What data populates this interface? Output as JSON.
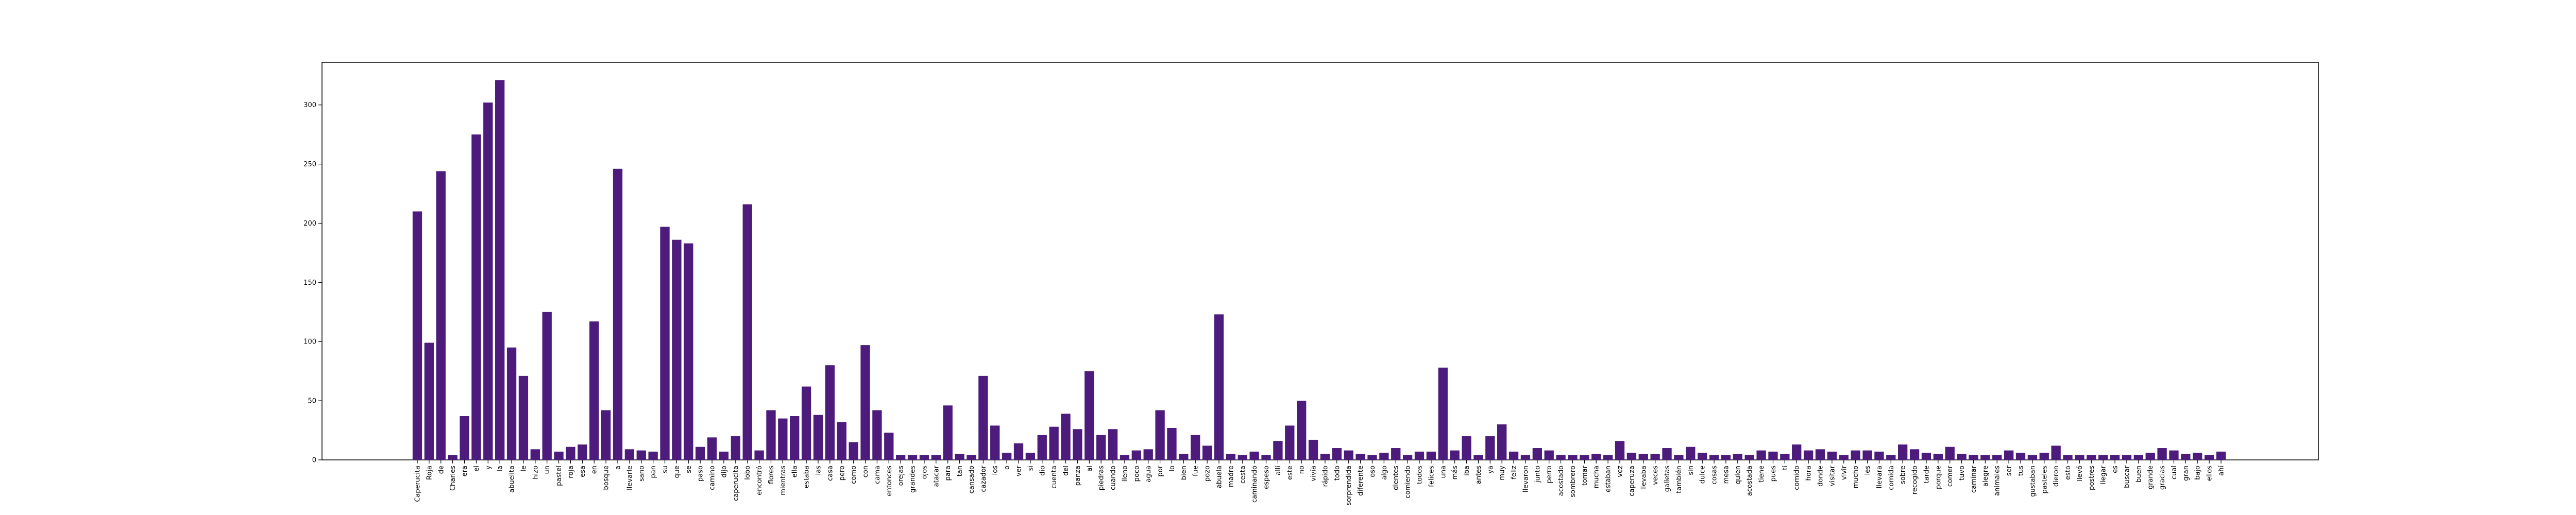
{
  "chart_data": {
    "type": "bar",
    "color": "#4c1b7b",
    "categories": [
      "Caperucita",
      "Roja",
      "de",
      "Charles",
      "era",
      "el",
      "y",
      "la",
      "abuelita",
      "le",
      "hizo",
      "un",
      "pastel",
      "roja",
      "esa",
      "en",
      "bosque",
      "a",
      "llevarle",
      "sano",
      "pan",
      "su",
      "que",
      "se",
      "paso",
      "camino",
      "dijo",
      "caperucita",
      "lobo",
      "encontró",
      "flores",
      "mientras",
      "ella",
      "estaba",
      "las",
      "casa",
      "pero",
      "como",
      "con",
      "cama",
      "entonces",
      "orejas",
      "grandes",
      "ojos",
      "atacar",
      "para",
      "tan",
      "cansado",
      "cazador",
      "los",
      "o",
      "ver",
      "si",
      "dio",
      "cuenta",
      "del",
      "panza",
      "al",
      "piedras",
      "cuando",
      "lleno",
      "poco",
      "agua",
      "por",
      "lo",
      "bien",
      "fue",
      "pozo",
      "abuela",
      "madre",
      "cesta",
      "caminando",
      "espeso",
      "allí",
      "este",
      "no",
      "vivía",
      "rápido",
      "todo",
      "sorprendida",
      "diferente",
      "oso",
      "algo",
      "dientes",
      "comiendo",
      "todos",
      "felices",
      "una",
      "más",
      "iba",
      "antes",
      "ya",
      "muy",
      "feliz",
      "llevaron",
      "junto",
      "perro",
      "acostado",
      "sombrero",
      "tomar",
      "mucha",
      "estaban",
      "vez",
      "caperuza",
      "llevaba",
      "veces",
      "galletas",
      "también",
      "sin",
      "dulce",
      "cosas",
      "mesa",
      "quien",
      "acostada",
      "tiene",
      "pues",
      "ti",
      "comido",
      "hora",
      "donde",
      "visitar",
      "vivir",
      "mucho",
      "les",
      "llevara",
      "comida",
      "sobre",
      "recogido",
      "tarde",
      "porque",
      "comer",
      "tuvo",
      "caminar",
      "alegre",
      "animales",
      "ser",
      "tus",
      "gustaban",
      "pasteles",
      "dieron",
      "esto",
      "llevó",
      "postres",
      "llegar",
      "es",
      "buscar",
      "buen",
      "grande",
      "gracias",
      "cual",
      "gran",
      "bajo",
      "ellos",
      "ahí"
    ],
    "values": [
      210,
      99,
      244,
      4,
      37,
      275,
      302,
      321,
      95,
      71,
      9,
      125,
      7,
      11,
      13,
      117,
      42,
      246,
      9,
      8,
      7,
      197,
      186,
      183,
      11,
      19,
      7,
      20,
      216,
      8,
      42,
      35,
      37,
      62,
      38,
      80,
      32,
      15,
      97,
      42,
      23,
      4,
      4,
      4,
      4,
      46,
      5,
      4,
      71,
      29,
      6,
      14,
      6,
      21,
      28,
      39,
      26,
      75,
      21,
      26,
      4,
      8,
      9,
      42,
      27,
      5,
      21,
      12,
      123,
      5,
      4,
      7,
      4,
      16,
      29,
      50,
      17,
      5,
      10,
      8,
      5,
      4,
      6,
      10,
      4,
      7,
      7,
      78,
      8,
      20,
      4,
      20,
      30,
      7,
      4,
      10,
      8,
      4,
      4,
      4,
      5,
      4,
      16,
      6,
      5,
      5,
      10,
      4,
      11,
      6,
      4,
      4,
      5,
      4,
      8,
      7,
      5,
      13,
      8,
      9,
      7,
      4,
      8,
      8,
      7,
      4,
      13,
      9,
      6,
      5,
      11,
      5,
      4,
      4,
      4,
      8,
      6,
      4,
      6,
      12,
      4,
      4,
      4,
      4,
      4,
      4,
      4,
      6,
      10,
      8,
      5,
      6,
      4,
      7
    ],
    "ylim": [
      0,
      336
    ],
    "yticks": [
      0,
      50,
      100,
      150,
      200,
      250,
      300
    ]
  }
}
